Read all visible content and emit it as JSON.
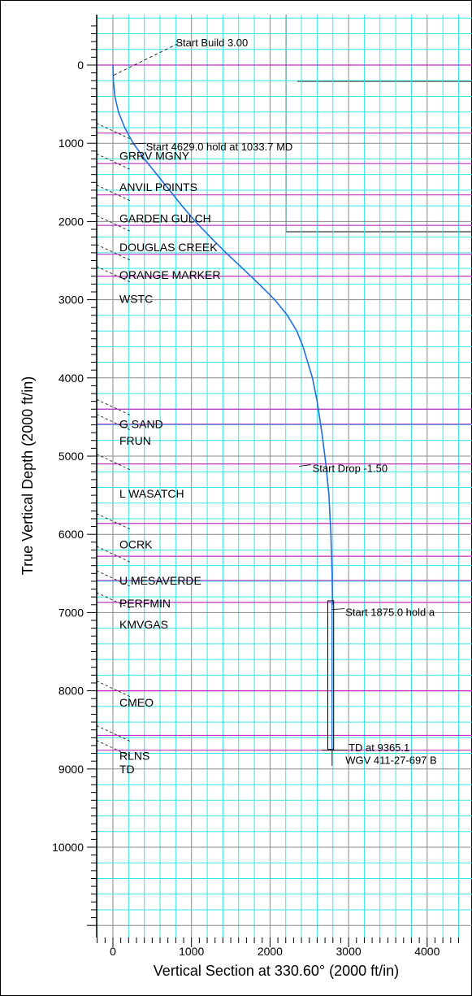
{
  "chart_data": {
    "type": "line",
    "title": "",
    "xlabel": "Vertical Section at 330.60° (2000 ft/in)",
    "ylabel": "True Vertical Depth (2000 ft/in)",
    "xlim": [
      -200,
      4400
    ],
    "ylim": [
      -600,
      11400
    ],
    "y_inverted": true,
    "x_ticks": [
      0,
      1000,
      2000,
      3000,
      4000
    ],
    "x_tick_labels": [
      "0",
      "1000",
      "2000",
      "3000",
      "4000"
    ],
    "y_ticks": [
      0,
      1000,
      2000,
      3000,
      4000,
      5000,
      6000,
      7000,
      8000,
      9000,
      10000
    ],
    "y_tick_labels": [
      "0",
      "1000",
      "2000",
      "3000",
      "4000",
      "5000",
      "6000",
      "7000",
      "8000",
      "9000",
      "10000"
    ],
    "grid": true,
    "grid_minor_step": 200,
    "series": [
      {
        "color": "#1f6fe0",
        "x": [
          0,
          5,
          25,
          70,
          150,
          260,
          400,
          560,
          720,
          880,
          1050,
          1240,
          1440,
          1650,
          1860,
          2060,
          2220,
          2340,
          2420,
          2480,
          2540,
          2600,
          2660,
          2710,
          2750,
          2775,
          2790,
          2795
        ],
        "y": [
          0,
          200,
          400,
          600,
          800,
          1000,
          1200,
          1400,
          1600,
          1800,
          2000,
          2200,
          2400,
          2600,
          2800,
          3000,
          3200,
          3400,
          3600,
          3800,
          4000,
          4300,
          4700,
          5100,
          5500,
          6000,
          6500,
          6900
        ]
      }
    ],
    "casing_box": {
      "x": [
        2735,
        2810
      ],
      "y": [
        6850,
        8750
      ],
      "color": "#000000"
    },
    "horizontal_lines": {
      "color": "#c030c0",
      "depths": [
        0,
        870,
        1260,
        1660,
        2050,
        2420,
        2700,
        4400,
        4590,
        5100,
        5860,
        6280,
        6590,
        6870,
        8000,
        8570,
        8760
      ]
    },
    "formation_labels": [
      {
        "text": "GRRV MGNY",
        "y": 1160
      },
      {
        "text": "ANVIL POINTS",
        "y": 1560
      },
      {
        "text": "GARDEN GULCH",
        "y": 1960
      },
      {
        "text": "DOUGLAS CREEK",
        "y": 2330
      },
      {
        "text": "ORANGE MARKER",
        "y": 2680
      },
      {
        "text": "WSTC",
        "y": 2990
      },
      {
        "text": "G SAND",
        "y": 4590
      },
      {
        "text": "FRUN",
        "y": 4800
      },
      {
        "text": "L WASATCH",
        "y": 5480
      },
      {
        "text": "OCRK",
        "y": 6130
      },
      {
        "text": "U MESAVERDE",
        "y": 6590
      },
      {
        "text": "PERFMIN",
        "y": 6880
      },
      {
        "text": "KMVGAS",
        "y": 7150
      },
      {
        "text": "CMEO",
        "y": 8150
      },
      {
        "text": "RLNS",
        "y": 8830
      },
      {
        "text": "TD",
        "y": 9000
      }
    ],
    "annotations": [
      {
        "text": "Start Build 3.00",
        "x": 800,
        "y": -290
      },
      {
        "text": "Start 4629.0 hold at 1033.7 MD",
        "x": 420,
        "y": 1040
      },
      {
        "text": "Start Drop -1.50",
        "x": 2540,
        "y": 5150
      },
      {
        "text": "Start 1875.0 hold a",
        "x": 2960,
        "y": 6990
      },
      {
        "text": "TD at 9365.1",
        "x": 3000,
        "y": 8720
      },
      {
        "text": "WGV 411-27-697 B",
        "x": 2960,
        "y": 8880
      }
    ]
  }
}
